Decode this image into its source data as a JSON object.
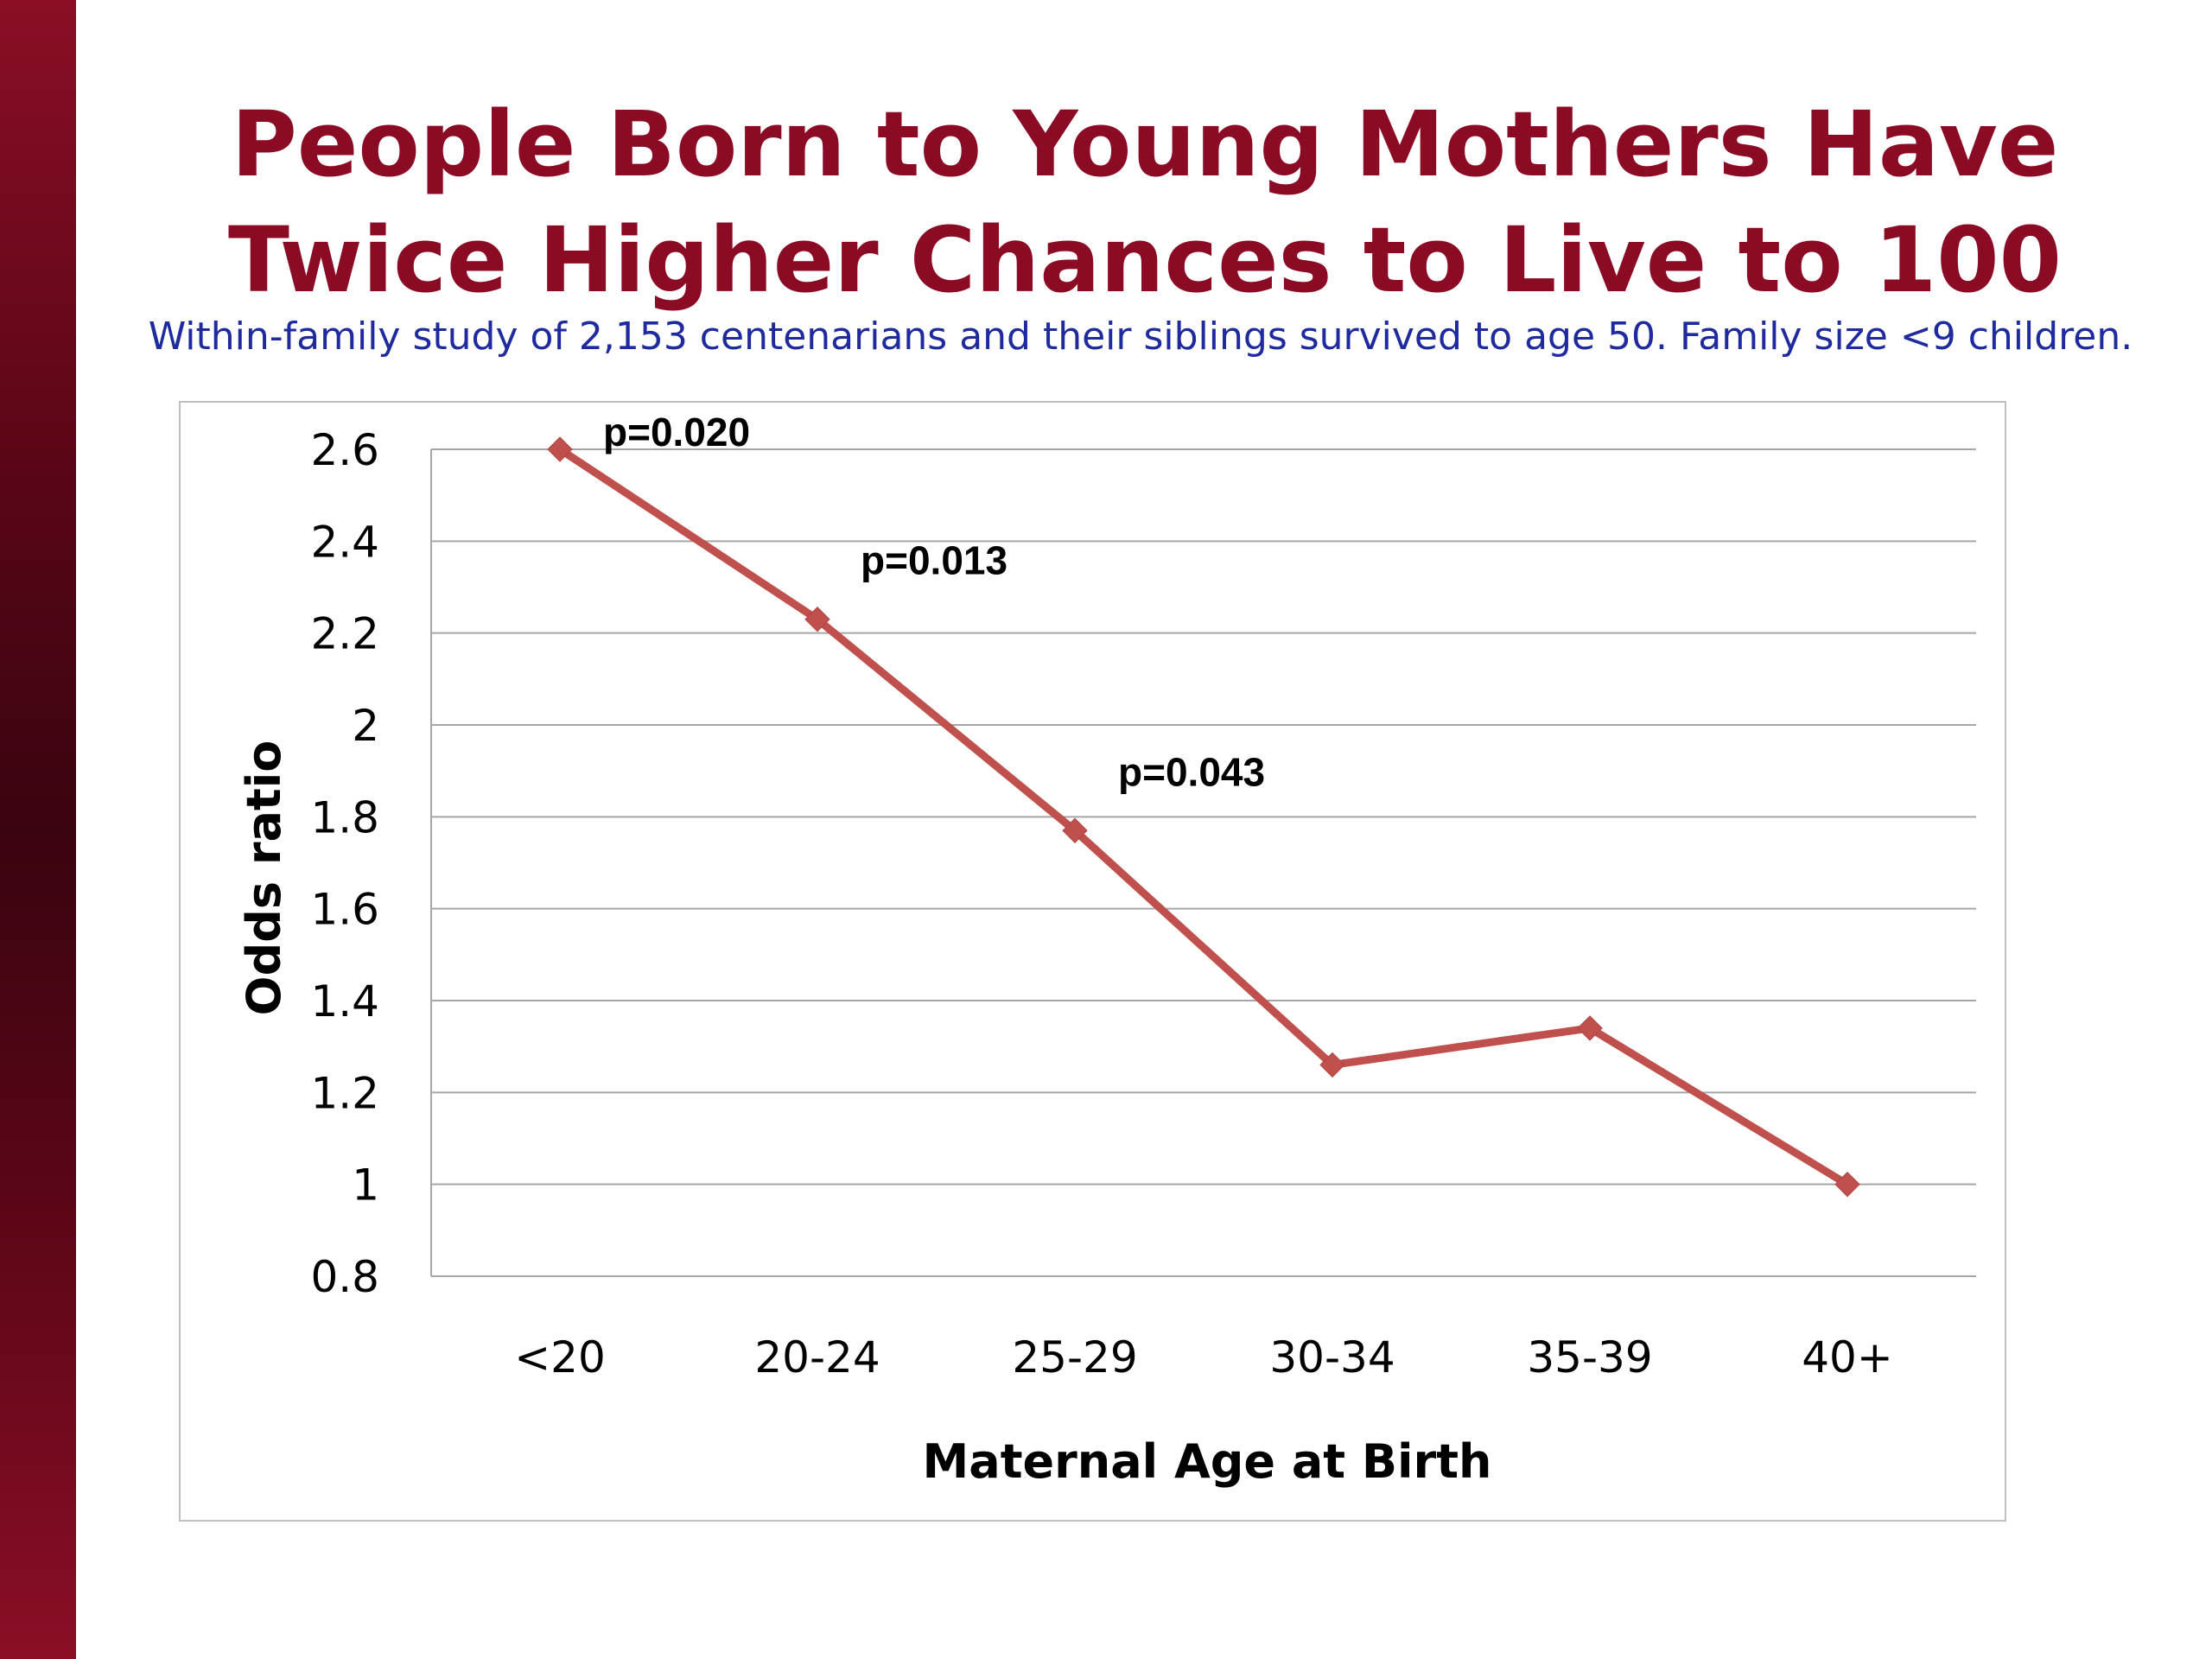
{
  "slide": {
    "title_line1": "People Born to Young Mothers Have",
    "title_line2": "Twice Higher Chances to Live to 100",
    "subtitle": "Within-family study of 2,153 centenarians and their siblings survived to age 50. Family size <9 children."
  },
  "colors": {
    "title": "#8b0a24",
    "subtitle": "#1e2a9e",
    "series_line": "#c0504d",
    "sidebar": "#6a0a1c",
    "gridline": "#a6a6a6"
  },
  "chart_data": {
    "type": "line",
    "title": "",
    "xlabel": "Maternal Age at Birth",
    "ylabel": "Odds ratio",
    "categories": [
      "<20",
      "20-24",
      "25-29",
      "30-34",
      "35-39",
      "40+"
    ],
    "series": [
      {
        "values": [
          2.6,
          2.23,
          1.77,
          1.26,
          1.34,
          1.0
        ]
      }
    ],
    "ylim": [
      0.8,
      2.6
    ],
    "yticks": [
      "0.8",
      "1",
      "1.2",
      "1.4",
      "1.6",
      "1.8",
      "2",
      "2.2",
      "2.4",
      "2.6"
    ],
    "grid": true,
    "legend": "none",
    "annotations": [
      {
        "category": "<20",
        "text": "p=0.020"
      },
      {
        "category": "20-24",
        "text": "p=0.013"
      },
      {
        "category": "25-29",
        "text": "p=0.043"
      }
    ]
  }
}
